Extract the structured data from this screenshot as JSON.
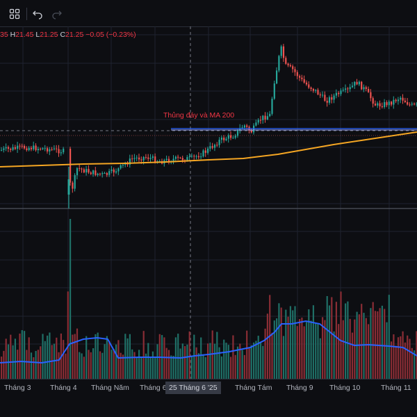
{
  "toolbar": {
    "items": [
      {
        "name": "layout-grid",
        "icon": "grid-icon",
        "enabled": true
      },
      {
        "name": "undo",
        "icon": "undo-icon",
        "enabled": true
      },
      {
        "name": "redo",
        "icon": "redo-icon",
        "enabled": false
      }
    ]
  },
  "legend": {
    "open_value": "35",
    "high_key": "H",
    "high_value": "21.45",
    "low_key": "L",
    "low_value": "21.25",
    "close_key": "C",
    "close_value": "21.25",
    "change": "−0.05 (−0.23%)"
  },
  "annotation": "Thủng đáy và MA 200",
  "crosshair_date": "25 Tháng 6 '25",
  "x_axis_labels": [
    "Tháng 3",
    "Tháng 4",
    "Tháng Năm",
    "Tháng 6",
    "Tháng Tám",
    "Tháng 9",
    "Tháng 10",
    "Tháng 11"
  ],
  "colors": {
    "background": "#0d0e12",
    "grid": "#1f2330",
    "up": "#26a69a",
    "down": "#ef5350",
    "ma200": "#f5a623",
    "volume_ma": "#2962ff",
    "support_line": "#2962ff",
    "annotation": "#f23645"
  },
  "chart_data": {
    "type": "candlestick",
    "indicators": [
      "MA 200",
      "Volume",
      "Volume MA"
    ],
    "support_level": 21.1,
    "price_series_key_points": [
      {
        "period": "Tháng 3",
        "price": 19.3
      },
      {
        "period": "Tháng 4",
        "price": 19.0
      },
      {
        "period": "Tháng 4 low",
        "price": 16.6
      },
      {
        "period": "Tháng Năm",
        "price": 18.4
      },
      {
        "period": "Tháng 6",
        "price": 19.0
      },
      {
        "period": "Tháng Tám",
        "price": 21.3
      },
      {
        "period": "Tháng 9 high",
        "price": 26.8
      },
      {
        "period": "Tháng 10",
        "price": 24.2
      },
      {
        "period": "Tháng 11",
        "price": 23.0
      }
    ]
  }
}
